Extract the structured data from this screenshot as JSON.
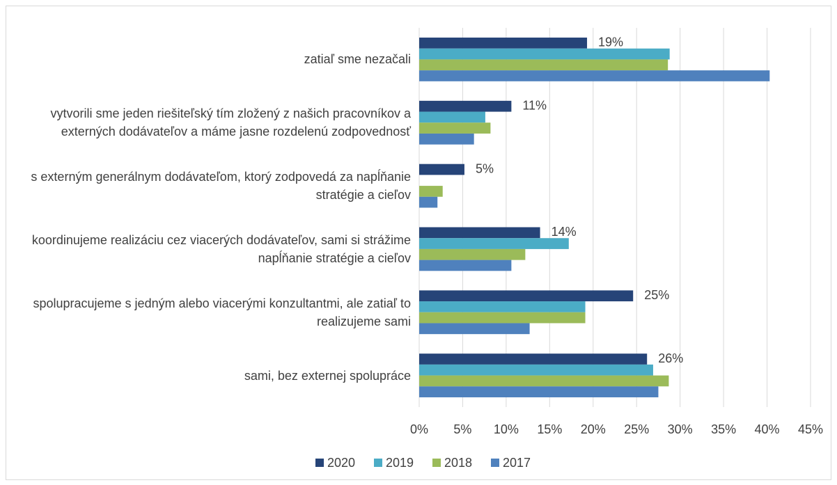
{
  "chart_data": {
    "type": "bar",
    "orientation": "horizontal",
    "categories": [
      "zatiaľ sme nezačali",
      "vytvorili sme jeden riešiteľský tím zložený z našich pracovníkov a externých dodávateľov a máme jasne rozdelenú zodpovednosť",
      "s externým generálnym dodávateľom, ktorý zodpovedá za napĺňanie stratégie a cieľov",
      "koordinujeme realizáciu cez viacerých dodávateľov, sami si strážime napĺňanie stratégie a cieľov",
      "spolupracujeme s jedným alebo viacerými konzultantmi, ale zatiaľ to realizujeme sami",
      "sami, bez externej spolupráce"
    ],
    "series": [
      {
        "name": "2020",
        "color": "#264478",
        "values": [
          19.3,
          10.6,
          5.2,
          13.9,
          24.6,
          26.2
        ],
        "value_labels": [
          "19%",
          "11%",
          "5%",
          "14%",
          "25%",
          "26%"
        ]
      },
      {
        "name": "2019",
        "color": "#4bacc6",
        "values": [
          28.8,
          7.6,
          0,
          17.2,
          19.1,
          26.9
        ]
      },
      {
        "name": "2018",
        "color": "#9bbb59",
        "values": [
          28.6,
          8.2,
          2.7,
          12.2,
          19.1,
          28.7
        ]
      },
      {
        "name": "2017",
        "color": "#4f81bd",
        "values": [
          40.3,
          6.3,
          2.1,
          10.6,
          12.7,
          27.5
        ]
      }
    ],
    "xlim": [
      0,
      45
    ],
    "xticks": [
      {
        "value": 0,
        "label": "0%"
      },
      {
        "value": 5,
        "label": "5%"
      },
      {
        "value": 10,
        "label": "10%"
      },
      {
        "value": 15,
        "label": "15%"
      },
      {
        "value": 20,
        "label": "20%"
      },
      {
        "value": 25,
        "label": "25%"
      },
      {
        "value": 30,
        "label": "30%"
      },
      {
        "value": 35,
        "label": "35%"
      },
      {
        "value": 40,
        "label": "40%"
      },
      {
        "value": 45,
        "label": "45%"
      }
    ],
    "grid": true,
    "legend": "bottom"
  }
}
